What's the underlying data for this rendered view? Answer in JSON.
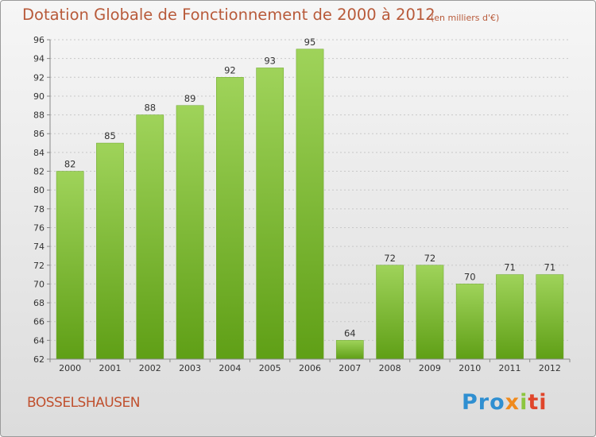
{
  "header": {
    "title": "Dotation Globale de Fonctionnement de 2000 à 2012",
    "unit": "(en milliers d'€)"
  },
  "footer": {
    "commune": "BOSSELSHAUSEN",
    "logo": [
      "Pro",
      "x",
      "i",
      "ti"
    ]
  },
  "colors": {
    "bar_top": "#9fd35a",
    "bar_bottom": "#5f9f16",
    "grid": "#c8c8c8",
    "title": "#b85a3a"
  },
  "chart_data": {
    "type": "bar",
    "title": "Dotation Globale de Fonctionnement de 2000 à 2012",
    "subtitle": "(en milliers d'€)",
    "xlabel": "",
    "ylabel": "",
    "categories": [
      "2000",
      "2001",
      "2002",
      "2003",
      "2004",
      "2005",
      "2006",
      "2007",
      "2008",
      "2009",
      "2010",
      "2011",
      "2012"
    ],
    "values": [
      82,
      85,
      88,
      89,
      92,
      93,
      95,
      64,
      72,
      72,
      70,
      71,
      71
    ],
    "ylim": [
      62,
      96
    ],
    "yticks": [
      62,
      64,
      66,
      68,
      70,
      72,
      74,
      76,
      78,
      80,
      82,
      84,
      86,
      88,
      90,
      92,
      94,
      96
    ],
    "grid": true,
    "legend": "none"
  }
}
